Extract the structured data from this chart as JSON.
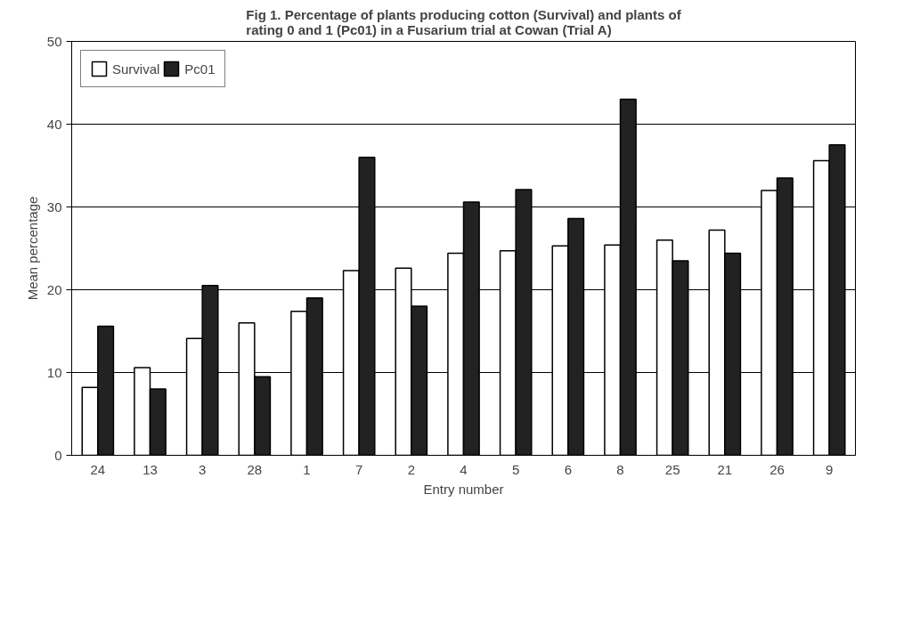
{
  "chart_data": {
    "type": "bar",
    "title": "Fig 1. Percentage of plants producing cotton (Survival) and plants of\nrating 0 and 1 (Pc01) in a Fusarium trial at Cowan (Trial A)",
    "xlabel": "Entry number",
    "ylabel": "Mean percentage",
    "categories": [
      "24",
      "13",
      "3",
      "28",
      "1",
      "7",
      "2",
      "4",
      "5",
      "6",
      "8",
      "25",
      "21",
      "26",
      "9"
    ],
    "series": [
      {
        "name": "Survival",
        "color": "#ffffff",
        "values": [
          8.2,
          10.6,
          14.1,
          16,
          17.4,
          22.3,
          22.6,
          24.4,
          24.7,
          25.3,
          25.4,
          26,
          27.2,
          32,
          35.6
        ]
      },
      {
        "name": "Pc01",
        "color": "#222222",
        "values": [
          15.6,
          8,
          20.5,
          9.5,
          19,
          36,
          18,
          30.6,
          32.1,
          28.6,
          43,
          23.5,
          24.4,
          33.5,
          37.5
        ]
      }
    ],
    "ylim": [
      0,
      50
    ],
    "yticks": [
      0,
      10,
      20,
      30,
      40,
      50
    ],
    "grid": "y",
    "legend": "top left"
  }
}
